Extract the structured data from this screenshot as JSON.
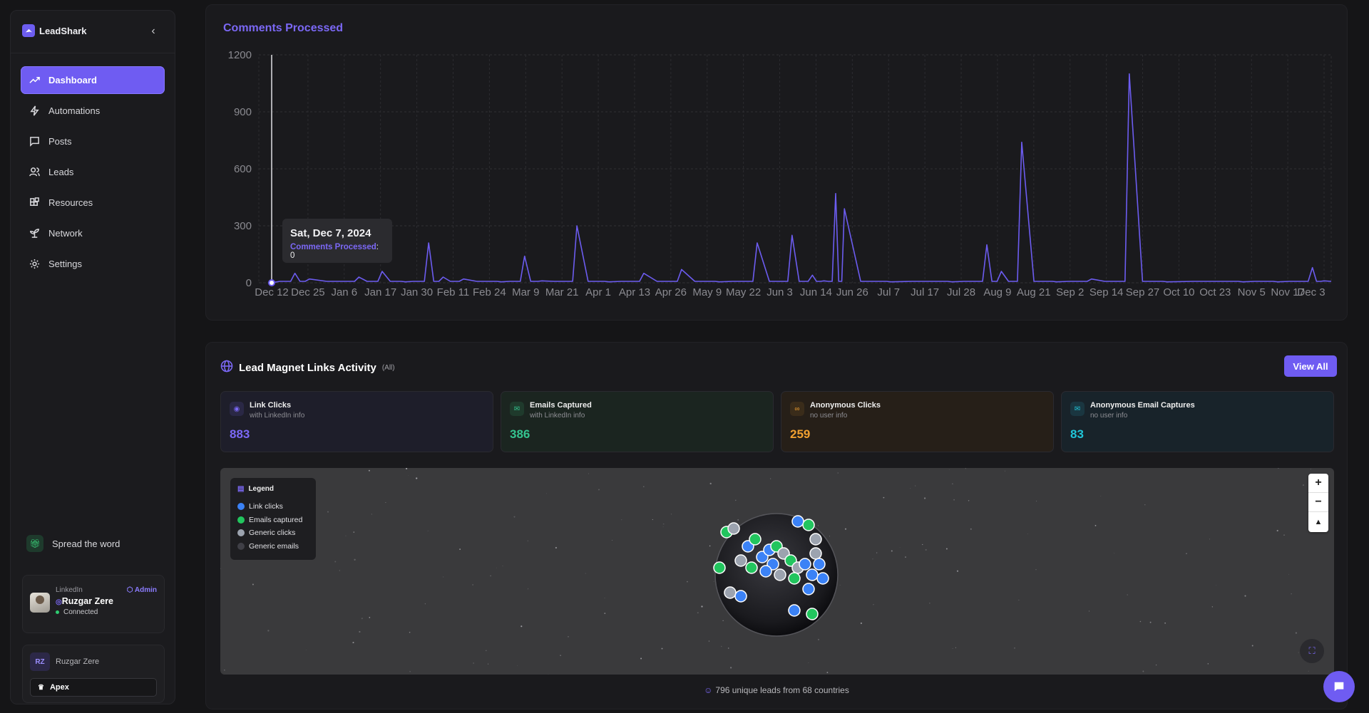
{
  "app": {
    "name": "LeadShark"
  },
  "sidebar": {
    "items": [
      {
        "label": "Dashboard",
        "icon": "trending-up-icon",
        "active": true
      },
      {
        "label": "Automations",
        "icon": "bolt-icon",
        "active": false
      },
      {
        "label": "Posts",
        "icon": "message-square-icon",
        "active": false
      },
      {
        "label": "Leads",
        "icon": "users-icon",
        "active": false
      },
      {
        "label": "Resources",
        "icon": "blocks-icon",
        "active": false
      },
      {
        "label": "Network",
        "icon": "sprout-icon",
        "active": false
      },
      {
        "label": "Settings",
        "icon": "gear-icon",
        "active": false
      }
    ],
    "spread": "Spread the word",
    "account": {
      "platform": "LinkedIn",
      "role": "Admin",
      "name": "Ruzgar Zere",
      "status": "Connected"
    },
    "org": {
      "initials": "RZ",
      "name": "Ruzgar Zere",
      "plan": "Apex"
    }
  },
  "chart_card": {
    "title": "Comments Processed",
    "tooltip": {
      "date": "Sat, Dec 7, 2024",
      "series": "Comments Processed",
      "value": "0"
    }
  },
  "chart_data": {
    "type": "line",
    "title": "Comments Processed",
    "xlabel": "",
    "ylabel": "",
    "ylim": [
      0,
      1200
    ],
    "y_ticks": [
      0,
      300,
      600,
      900,
      1200
    ],
    "x_tick_labels": [
      "Dec 12",
      "Dec 25",
      "Jan 6",
      "Jan 17",
      "Jan 30",
      "Feb 11",
      "Feb 24",
      "Mar 9",
      "Mar 21",
      "Apr 1",
      "Apr 13",
      "Apr 26",
      "May 9",
      "May 22",
      "Jun 3",
      "Jun 14",
      "Jun 26",
      "Jul 7",
      "Jul 17",
      "Jul 28",
      "Aug 9",
      "Aug 21",
      "Sep 2",
      "Sep 14",
      "Sep 27",
      "Oct 10",
      "Oct 23",
      "Nov 5",
      "Nov 17",
      "Dec 3"
    ],
    "series": [
      {
        "color": "#6c5cf0",
        "points": [
          [
            "Dec 7",
            0
          ],
          [
            "Dec 15",
            50
          ],
          [
            "Dec 20",
            20
          ],
          [
            "Jan 6",
            30
          ],
          [
            "Jan 14",
            60
          ],
          [
            "Jan 22",
            5
          ],
          [
            "Jan 30",
            210
          ],
          [
            "Feb 4",
            30
          ],
          [
            "Feb 11",
            20
          ],
          [
            "Feb 24",
            5
          ],
          [
            "Mar 3",
            140
          ],
          [
            "Mar 9",
            10
          ],
          [
            "Mar 21",
            300
          ],
          [
            "Apr 1",
            5
          ],
          [
            "Apr 13",
            50
          ],
          [
            "Apr 26",
            70
          ],
          [
            "May 9",
            5
          ],
          [
            "May 22",
            210
          ],
          [
            "Jun 3",
            250
          ],
          [
            "Jun 10",
            40
          ],
          [
            "Jun 14",
            10
          ],
          [
            "Jun 18",
            470
          ],
          [
            "Jun 21",
            390
          ],
          [
            "Jul 7",
            5
          ],
          [
            "Jul 28",
            5
          ],
          [
            "Aug 9",
            200
          ],
          [
            "Aug 14",
            60
          ],
          [
            "Aug 21",
            740
          ],
          [
            "Sep 2",
            5
          ],
          [
            "Sep 14",
            20
          ],
          [
            "Sep 27",
            1100
          ],
          [
            "Oct 10",
            5
          ],
          [
            "Nov 5",
            5
          ],
          [
            "Nov 17",
            5
          ],
          [
            "Nov 29",
            80
          ],
          [
            "Dec 3",
            10
          ]
        ]
      }
    ]
  },
  "lead_magnet": {
    "title": "Lead Magnet Links Activity",
    "filter": "(All)",
    "view_all": "View All",
    "stats": [
      {
        "title": "Link Clicks",
        "sub": "with LinkedIn info",
        "value": "883",
        "color": "#7b68f5",
        "bg": "#1e1e2a",
        "icon": "eye-icon"
      },
      {
        "title": "Emails Captured",
        "sub": "with LinkedIn info",
        "value": "386",
        "color": "#34c38f",
        "bg": "#1b2520",
        "icon": "mail-icon"
      },
      {
        "title": "Anonymous Clicks",
        "sub": "no user info",
        "value": "259",
        "color": "#f0a030",
        "bg": "#261f18",
        "icon": "link-icon"
      },
      {
        "title": "Anonymous Email Captures",
        "sub": "no user info",
        "value": "83",
        "color": "#20c5d8",
        "bg": "#18232a",
        "icon": "mail-open-icon"
      }
    ],
    "legend": {
      "title": "Legend",
      "items": [
        {
          "label": "Link clicks",
          "color": "#3b82f6"
        },
        {
          "label": "Emails captured",
          "color": "#22c55e"
        },
        {
          "label": "Generic clicks",
          "color": "#9ca3af"
        },
        {
          "label": "Generic emails",
          "color": "#3f3f46"
        }
      ]
    },
    "footer": "796 unique leads from 68 countries"
  }
}
